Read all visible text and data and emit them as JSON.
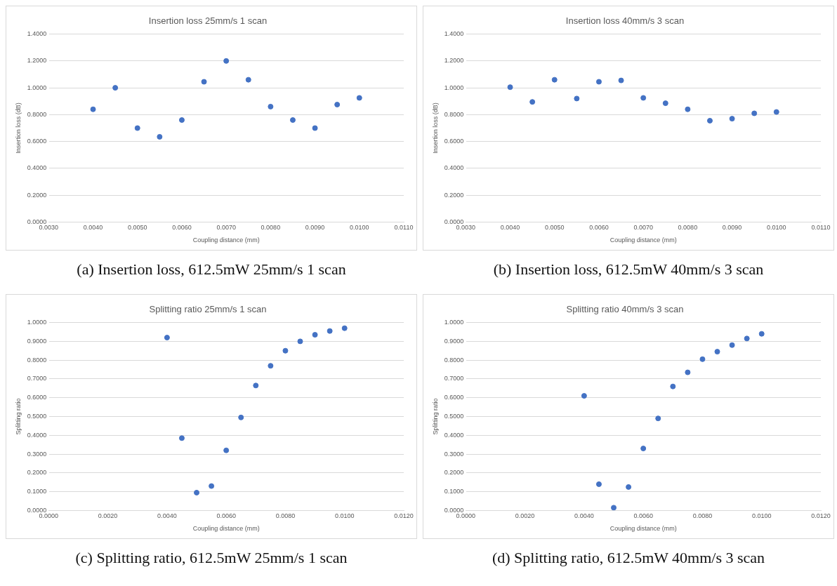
{
  "chart_data": [
    {
      "type": "scatter",
      "title": "Insertion loss 25mm/s 1 scan",
      "xlabel": "Coupling distance (mm)",
      "ylabel": "Insertion loss (dB)",
      "annotations": [
        "(a) Insertion loss, 612.5mW 25mm/s 1 scan"
      ],
      "x": [
        0.004,
        0.0045,
        0.005,
        0.0055,
        0.006,
        0.0065,
        0.007,
        0.0075,
        0.008,
        0.0085,
        0.009,
        0.0095,
        0.01
      ],
      "series": [
        {
          "color": "#4472c4",
          "values": [
            0.84,
            1.0,
            0.7,
            0.635,
            0.76,
            1.045,
            1.2,
            1.06,
            0.86,
            0.76,
            0.7,
            0.875,
            0.925
          ]
        }
      ],
      "xlim": [
        0.003,
        0.011
      ],
      "xticks": [
        {
          "value": 0.003,
          "label": "0.0030"
        },
        {
          "value": 0.004,
          "label": "0.0040"
        },
        {
          "value": 0.005,
          "label": "0.0050"
        },
        {
          "value": 0.006,
          "label": "0.0060"
        },
        {
          "value": 0.007,
          "label": "0.0070"
        },
        {
          "value": 0.008,
          "label": "0.0080"
        },
        {
          "value": 0.009,
          "label": "0.0090"
        },
        {
          "value": 0.01,
          "label": "0.0100"
        },
        {
          "value": 0.011,
          "label": "0.0110"
        }
      ],
      "ylim": [
        0,
        1.4
      ],
      "yticks": [
        {
          "value": 0,
          "label": "0.0000"
        },
        {
          "value": 0.2,
          "label": "0.2000"
        },
        {
          "value": 0.4,
          "label": "0.4000"
        },
        {
          "value": 0.6,
          "label": "0.6000"
        },
        {
          "value": 0.8,
          "label": "0.8000"
        },
        {
          "value": 1.0,
          "label": "1.0000"
        },
        {
          "value": 1.2,
          "label": "1.2000"
        },
        {
          "value": 1.4,
          "label": "1.4000"
        }
      ],
      "grid": "y",
      "marker": "circle"
    },
    {
      "type": "scatter",
      "title": "Insertion loss 40mm/s 3 scan",
      "xlabel": "Coupling distance (mm)",
      "ylabel": "Insertion loss (dB)",
      "annotations": [
        "(b) Insertion loss, 612.5mW 40mm/s 3 scan"
      ],
      "x": [
        0.004,
        0.0045,
        0.005,
        0.0055,
        0.006,
        0.0065,
        0.007,
        0.0075,
        0.008,
        0.0085,
        0.009,
        0.0095,
        0.01
      ],
      "series": [
        {
          "color": "#4472c4",
          "values": [
            1.005,
            0.895,
            1.06,
            0.92,
            1.045,
            1.055,
            0.925,
            0.885,
            0.84,
            0.755,
            0.77,
            0.81,
            0.82
          ]
        }
      ],
      "xlim": [
        0.003,
        0.011
      ],
      "xticks": [
        {
          "value": 0.003,
          "label": "0.0030"
        },
        {
          "value": 0.004,
          "label": "0.0040"
        },
        {
          "value": 0.005,
          "label": "0.0050"
        },
        {
          "value": 0.006,
          "label": "0.0060"
        },
        {
          "value": 0.007,
          "label": "0.0070"
        },
        {
          "value": 0.008,
          "label": "0.0080"
        },
        {
          "value": 0.009,
          "label": "0.0090"
        },
        {
          "value": 0.01,
          "label": "0.0100"
        },
        {
          "value": 0.011,
          "label": "0.0110"
        }
      ],
      "ylim": [
        0,
        1.4
      ],
      "yticks": [
        {
          "value": 0,
          "label": "0.0000"
        },
        {
          "value": 0.2,
          "label": "0.2000"
        },
        {
          "value": 0.4,
          "label": "0.4000"
        },
        {
          "value": 0.6,
          "label": "0.6000"
        },
        {
          "value": 0.8,
          "label": "0.8000"
        },
        {
          "value": 1.0,
          "label": "1.0000"
        },
        {
          "value": 1.2,
          "label": "1.2000"
        },
        {
          "value": 1.4,
          "label": "1.4000"
        }
      ],
      "grid": "y",
      "marker": "circle"
    },
    {
      "type": "scatter",
      "title": "Splitting ratio 25mm/s 1 scan",
      "xlabel": "Coupling distance (mm)",
      "ylabel": "Splitting ratio",
      "annotations": [
        "(c) Splitting ratio, 612.5mW 25mm/s 1 scan"
      ],
      "x": [
        0.004,
        0.0045,
        0.005,
        0.0055,
        0.006,
        0.0065,
        0.007,
        0.0075,
        0.008,
        0.0085,
        0.009,
        0.0095,
        0.01
      ],
      "series": [
        {
          "color": "#4472c4",
          "values": [
            0.92,
            0.385,
            0.095,
            0.13,
            0.32,
            0.495,
            0.665,
            0.77,
            0.85,
            0.9,
            0.935,
            0.955,
            0.97
          ]
        }
      ],
      "xlim": [
        0,
        0.012
      ],
      "xticks": [
        {
          "value": 0,
          "label": "0.0000"
        },
        {
          "value": 0.002,
          "label": "0.0020"
        },
        {
          "value": 0.004,
          "label": "0.0040"
        },
        {
          "value": 0.006,
          "label": "0.0060"
        },
        {
          "value": 0.008,
          "label": "0.0080"
        },
        {
          "value": 0.01,
          "label": "0.0100"
        },
        {
          "value": 0.012,
          "label": "0.0120"
        }
      ],
      "ylim": [
        0,
        1.0
      ],
      "yticks": [
        {
          "value": 0,
          "label": "0.0000"
        },
        {
          "value": 0.1,
          "label": "0.1000"
        },
        {
          "value": 0.2,
          "label": "0.2000"
        },
        {
          "value": 0.3,
          "label": "0.3000"
        },
        {
          "value": 0.4,
          "label": "0.4000"
        },
        {
          "value": 0.5,
          "label": "0.5000"
        },
        {
          "value": 0.6,
          "label": "0.6000"
        },
        {
          "value": 0.7,
          "label": "0.7000"
        },
        {
          "value": 0.8,
          "label": "0.8000"
        },
        {
          "value": 0.9,
          "label": "0.9000"
        },
        {
          "value": 1.0,
          "label": "1.0000"
        }
      ],
      "grid": "y",
      "marker": "circle"
    },
    {
      "type": "scatter",
      "title": "Splitting ratio 40mm/s 3 scan",
      "xlabel": "Coupling distance (mm)",
      "ylabel": "Splitting ratio",
      "annotations": [
        "(d) Splitting ratio, 612.5mW 40mm/s 3 scan"
      ],
      "x": [
        0.004,
        0.0045,
        0.005,
        0.0055,
        0.006,
        0.0065,
        0.007,
        0.0075,
        0.008,
        0.0085,
        0.009,
        0.0095,
        0.01
      ],
      "series": [
        {
          "color": "#4472c4",
          "values": [
            0.61,
            0.14,
            0.015,
            0.125,
            0.33,
            0.49,
            0.66,
            0.735,
            0.805,
            0.845,
            0.88,
            0.915,
            0.94
          ]
        }
      ],
      "xlim": [
        0,
        0.012
      ],
      "xticks": [
        {
          "value": 0,
          "label": "0.0000"
        },
        {
          "value": 0.002,
          "label": "0.0020"
        },
        {
          "value": 0.004,
          "label": "0.0040"
        },
        {
          "value": 0.006,
          "label": "0.0060"
        },
        {
          "value": 0.008,
          "label": "0.0080"
        },
        {
          "value": 0.01,
          "label": "0.0100"
        },
        {
          "value": 0.012,
          "label": "0.0120"
        }
      ],
      "ylim": [
        0,
        1.0
      ],
      "yticks": [
        {
          "value": 0,
          "label": "0.0000"
        },
        {
          "value": 0.1,
          "label": "0.1000"
        },
        {
          "value": 0.2,
          "label": "0.2000"
        },
        {
          "value": 0.3,
          "label": "0.3000"
        },
        {
          "value": 0.4,
          "label": "0.4000"
        },
        {
          "value": 0.5,
          "label": "0.5000"
        },
        {
          "value": 0.6,
          "label": "0.6000"
        },
        {
          "value": 0.7,
          "label": "0.7000"
        },
        {
          "value": 0.8,
          "label": "0.8000"
        },
        {
          "value": 0.9,
          "label": "0.9000"
        },
        {
          "value": 1.0,
          "label": "1.0000"
        }
      ],
      "grid": "y",
      "marker": "circle"
    }
  ]
}
